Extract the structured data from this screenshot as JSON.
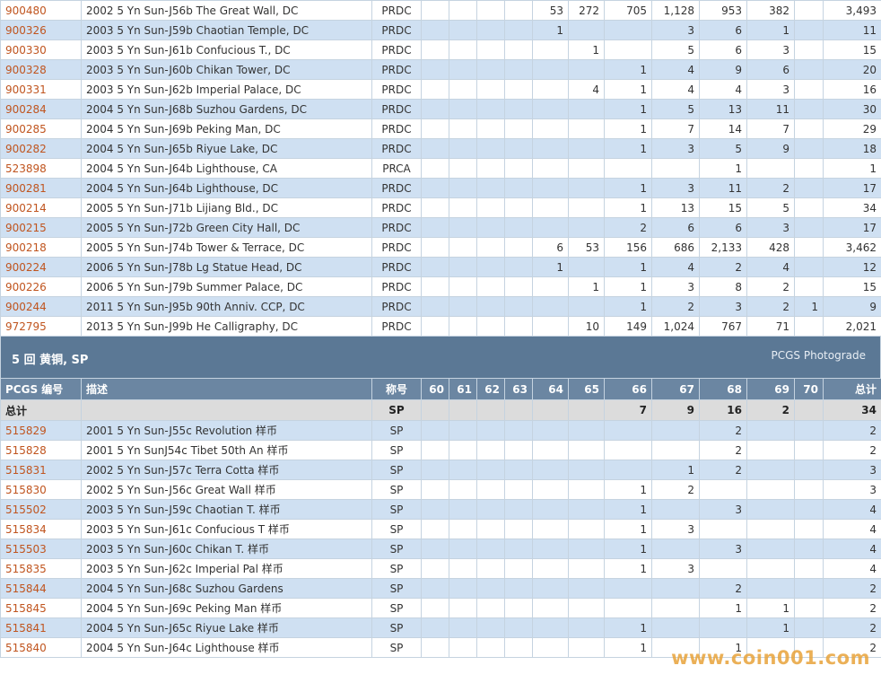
{
  "top_rows": [
    {
      "id": "900480",
      "desc": "2002 5 Yn Sun-J56b The Great Wall, DC",
      "des": "PRDC",
      "c": [
        "",
        "",
        "",
        "",
        "",
        "53",
        "272",
        "705",
        "1,128",
        "953",
        "382",
        "",
        "3,493"
      ]
    },
    {
      "id": "900326",
      "desc": "2003 5 Yn Sun-J59b Chaotian Temple, DC",
      "des": "PRDC",
      "c": [
        "",
        "",
        "",
        "",
        "",
        "1",
        "",
        "",
        "3",
        "6",
        "1",
        "",
        "11"
      ]
    },
    {
      "id": "900330",
      "desc": "2003 5 Yn Sun-J61b Confucious T., DC",
      "des": "PRDC",
      "c": [
        "",
        "",
        "",
        "",
        "",
        "",
        "1",
        "",
        "5",
        "6",
        "3",
        "",
        "15"
      ]
    },
    {
      "id": "900328",
      "desc": "2003 5 Yn Sun-J60b Chikan Tower, DC",
      "des": "PRDC",
      "c": [
        "",
        "",
        "",
        "",
        "",
        "",
        "",
        "1",
        "4",
        "9",
        "6",
        "",
        "20"
      ]
    },
    {
      "id": "900331",
      "desc": "2003 5 Yn Sun-J62b Imperial Palace, DC",
      "des": "PRDC",
      "c": [
        "",
        "",
        "",
        "",
        "",
        "",
        "4",
        "1",
        "4",
        "4",
        "3",
        "",
        "16"
      ]
    },
    {
      "id": "900284",
      "desc": "2004 5 Yn Sun-J68b Suzhou Gardens, DC",
      "des": "PRDC",
      "c": [
        "",
        "",
        "",
        "",
        "",
        "",
        "",
        "1",
        "5",
        "13",
        "11",
        "",
        "30"
      ]
    },
    {
      "id": "900285",
      "desc": "2004 5 Yn Sun-J69b Peking Man, DC",
      "des": "PRDC",
      "c": [
        "",
        "",
        "",
        "",
        "",
        "",
        "",
        "1",
        "7",
        "14",
        "7",
        "",
        "29"
      ]
    },
    {
      "id": "900282",
      "desc": "2004 5 Yn Sun-J65b Riyue Lake, DC",
      "des": "PRDC",
      "c": [
        "",
        "",
        "",
        "",
        "",
        "",
        "",
        "1",
        "3",
        "5",
        "9",
        "",
        "18"
      ]
    },
    {
      "id": "523898",
      "desc": "2004 5 Yn Sun-J64b Lighthouse, CA",
      "des": "PRCA",
      "c": [
        "",
        "",
        "",
        "",
        "",
        "",
        "",
        "",
        "",
        "1",
        "",
        "",
        "1"
      ]
    },
    {
      "id": "900281",
      "desc": "2004 5 Yn Sun-J64b Lighthouse, DC",
      "des": "PRDC",
      "c": [
        "",
        "",
        "",
        "",
        "",
        "",
        "",
        "1",
        "3",
        "11",
        "2",
        "",
        "17"
      ]
    },
    {
      "id": "900214",
      "desc": "2005 5 Yn Sun-J71b Lijiang Bld., DC",
      "des": "PRDC",
      "c": [
        "",
        "",
        "",
        "",
        "",
        "",
        "",
        "1",
        "13",
        "15",
        "5",
        "",
        "34"
      ]
    },
    {
      "id": "900215",
      "desc": "2005 5 Yn Sun-J72b Green City Hall, DC",
      "des": "PRDC",
      "c": [
        "",
        "",
        "",
        "",
        "",
        "",
        "",
        "2",
        "6",
        "6",
        "3",
        "",
        "17"
      ]
    },
    {
      "id": "900218",
      "desc": "2005 5 Yn Sun-J74b Tower & Terrace, DC",
      "des": "PRDC",
      "c": [
        "",
        "",
        "",
        "",
        "",
        "6",
        "53",
        "156",
        "686",
        "2,133",
        "428",
        "",
        "3,462"
      ]
    },
    {
      "id": "900224",
      "desc": "2006 5 Yn Sun-J78b Lg Statue Head, DC",
      "des": "PRDC",
      "c": [
        "",
        "",
        "",
        "",
        "",
        "1",
        "",
        "1",
        "4",
        "2",
        "4",
        "",
        "12"
      ]
    },
    {
      "id": "900226",
      "desc": "2006 5 Yn Sun-J79b Summer Palace, DC",
      "des": "PRDC",
      "c": [
        "",
        "",
        "",
        "",
        "",
        "",
        "1",
        "1",
        "3",
        "8",
        "2",
        "",
        "15"
      ]
    },
    {
      "id": "900244",
      "desc": "2011 5 Yn Sun-J95b 90th Anniv. CCP, DC",
      "des": "PRDC",
      "c": [
        "",
        "",
        "",
        "",
        "",
        "",
        "",
        "1",
        "2",
        "3",
        "2",
        "1",
        "9"
      ]
    },
    {
      "id": "972795",
      "desc": "2013 5 Yn Sun-J99b He Calligraphy, DC",
      "des": "PRDC",
      "c": [
        "",
        "",
        "",
        "",
        "",
        "",
        "10",
        "149",
        "1,024",
        "767",
        "71",
        "",
        "2,021"
      ]
    }
  ],
  "section": {
    "title": "5 回 黄铜, SP",
    "tag": "PCGS Photograde"
  },
  "headers": {
    "id": "PCGS 编号",
    "desc": "描述",
    "des": "称号",
    "grades": [
      "60",
      "61",
      "62",
      "63",
      "64",
      "65",
      "66",
      "67",
      "68",
      "69",
      "70"
    ],
    "total": "总计"
  },
  "totals": {
    "label": "总计",
    "des": "SP",
    "c": [
      "",
      "",
      "",
      "",
      "",
      "",
      "7",
      "9",
      "16",
      "2",
      "",
      "34"
    ]
  },
  "sp_rows": [
    {
      "id": "515829",
      "desc": "2001 5 Yn Sun-J55c Revolution 样币",
      "des": "SP",
      "c": [
        "",
        "",
        "",
        "",
        "",
        "",
        "",
        "",
        "2",
        "",
        "",
        "2"
      ]
    },
    {
      "id": "515828",
      "desc": "2001 5 Yn SunJ54c Tibet 50th An 样币",
      "des": "SP",
      "c": [
        "",
        "",
        "",
        "",
        "",
        "",
        "",
        "",
        "2",
        "",
        "",
        "2"
      ]
    },
    {
      "id": "515831",
      "desc": "2002 5 Yn Sun-J57c Terra Cotta 样币",
      "des": "SP",
      "c": [
        "",
        "",
        "",
        "",
        "",
        "",
        "",
        "1",
        "2",
        "",
        "",
        "3"
      ]
    },
    {
      "id": "515830",
      "desc": "2002 5 Yn Sun-J56c Great Wall 样币",
      "des": "SP",
      "c": [
        "",
        "",
        "",
        "",
        "",
        "",
        "1",
        "2",
        "",
        "",
        "",
        "3"
      ]
    },
    {
      "id": "515502",
      "desc": "2003 5 Yn Sun-J59c Chaotian T. 样币",
      "des": "SP",
      "c": [
        "",
        "",
        "",
        "",
        "",
        "",
        "1",
        "",
        "3",
        "",
        "",
        "4"
      ]
    },
    {
      "id": "515834",
      "desc": "2003 5 Yn Sun-J61c Confucious T 样币",
      "des": "SP",
      "c": [
        "",
        "",
        "",
        "",
        "",
        "",
        "1",
        "3",
        "",
        "",
        "",
        "4"
      ]
    },
    {
      "id": "515503",
      "desc": "2003 5 Yn Sun-J60c Chikan T. 样币",
      "des": "SP",
      "c": [
        "",
        "",
        "",
        "",
        "",
        "",
        "1",
        "",
        "3",
        "",
        "",
        "4"
      ]
    },
    {
      "id": "515835",
      "desc": "2003 5 Yn Sun-J62c Imperial Pal 样币",
      "des": "SP",
      "c": [
        "",
        "",
        "",
        "",
        "",
        "",
        "1",
        "3",
        "",
        "",
        "",
        "4"
      ]
    },
    {
      "id": "515844",
      "desc": "2004 5 Yn Sun-J68c Suzhou Gardens",
      "des": "SP",
      "c": [
        "",
        "",
        "",
        "",
        "",
        "",
        "",
        "",
        "2",
        "",
        "",
        "2"
      ]
    },
    {
      "id": "515845",
      "desc": "2004 5 Yn Sun-J69c Peking Man 样币",
      "des": "SP",
      "c": [
        "",
        "",
        "",
        "",
        "",
        "",
        "",
        "",
        "1",
        "1",
        "",
        "2"
      ]
    },
    {
      "id": "515841",
      "desc": "2004 5 Yn Sun-J65c Riyue Lake 样币",
      "des": "SP",
      "c": [
        "",
        "",
        "",
        "",
        "",
        "",
        "1",
        "",
        "",
        "1",
        "",
        "2"
      ]
    },
    {
      "id": "515840",
      "desc": "2004 5 Yn Sun-J64c Lighthouse 样币",
      "des": "SP",
      "c": [
        "",
        "",
        "",
        "",
        "",
        "",
        "1",
        "",
        "1",
        "",
        "",
        "2"
      ]
    }
  ],
  "watermark": "www.coin001.com"
}
